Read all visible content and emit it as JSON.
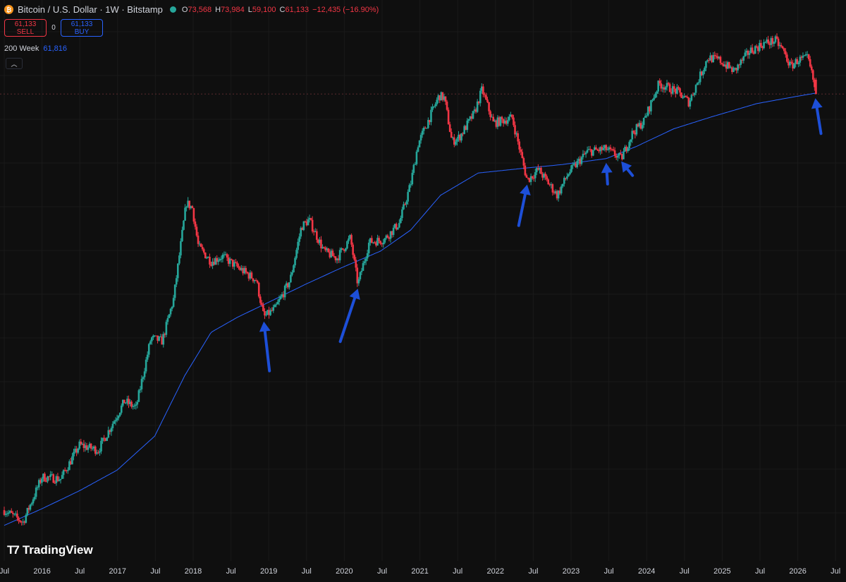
{
  "header": {
    "title": "Bitcoin / U.S. Dollar · 1W · Bitstamp",
    "icon": "bitcoin-icon",
    "ohlc": [
      {
        "key": "O",
        "value": "73,568"
      },
      {
        "key": "H",
        "value": "73,984"
      },
      {
        "key": "L",
        "value": "59,100"
      },
      {
        "key": "C",
        "value": "61,133"
      }
    ],
    "change": "−12,435 (−16.90%)"
  },
  "trade": {
    "sell_price": "61,133",
    "sell_label": "SELL",
    "spread": "0",
    "buy_price": "61,133",
    "buy_label": "BUY"
  },
  "indicator": {
    "name": "200 Week",
    "value": "61,816"
  },
  "collapse_icon": "chevron-up-icon",
  "logo_text": "TradingView",
  "colors": {
    "background": "#0f0f0f",
    "up": "#26a69a",
    "down": "#f23645",
    "ma": "#2962ff",
    "arrow": "#1d4fd8",
    "text": "#d1d4dc"
  },
  "chart_data": {
    "type": "candlestick",
    "scale": "log",
    "x_tick_labels": [
      "Jul",
      "2016",
      "Jul",
      "2017",
      "Jul",
      "2018",
      "Jul",
      "2019",
      "Jul",
      "2020",
      "Jul",
      "2021",
      "Jul",
      "2022",
      "Jul",
      "2023",
      "Jul",
      "2024",
      "Jul",
      "2025",
      "Jul",
      "2026",
      "Jul"
    ],
    "x_range": [
      2015.5,
      2026.5
    ],
    "y_range": [
      200,
      150000
    ],
    "last_close": 61133,
    "price_path": [
      [
        2015.5,
        280
      ],
      [
        2015.75,
        240
      ],
      [
        2016.0,
        430
      ],
      [
        2016.25,
        420
      ],
      [
        2016.5,
        650
      ],
      [
        2016.75,
        610
      ],
      [
        2017.0,
        960
      ],
      [
        2017.1,
        1150
      ],
      [
        2017.25,
        1050
      ],
      [
        2017.45,
        2600
      ],
      [
        2017.6,
        2500
      ],
      [
        2017.75,
        4300
      ],
      [
        2017.92,
        15000
      ],
      [
        2018.0,
        14000
      ],
      [
        2018.08,
        8500
      ],
      [
        2018.25,
        7000
      ],
      [
        2018.4,
        7500
      ],
      [
        2018.6,
        6500
      ],
      [
        2018.85,
        5500
      ],
      [
        2018.95,
        3400
      ],
      [
        2019.1,
        3800
      ],
      [
        2019.3,
        5500
      ],
      [
        2019.45,
        11000
      ],
      [
        2019.55,
        12000
      ],
      [
        2019.75,
        8000
      ],
      [
        2019.92,
        7300
      ],
      [
        2020.1,
        9500
      ],
      [
        2020.2,
        5200
      ],
      [
        2020.35,
        9000
      ],
      [
        2020.55,
        9300
      ],
      [
        2020.75,
        11500
      ],
      [
        2020.9,
        19000
      ],
      [
        2021.0,
        32000
      ],
      [
        2021.28,
        60000
      ],
      [
        2021.35,
        58000
      ],
      [
        2021.45,
        33000
      ],
      [
        2021.55,
        35000
      ],
      [
        2021.75,
        48000
      ],
      [
        2021.85,
        65000
      ],
      [
        2022.0,
        42000
      ],
      [
        2022.25,
        45000
      ],
      [
        2022.45,
        20000
      ],
      [
        2022.6,
        23000
      ],
      [
        2022.85,
        16500
      ],
      [
        2023.0,
        22000
      ],
      [
        2023.25,
        29000
      ],
      [
        2023.5,
        30000
      ],
      [
        2023.7,
        26500
      ],
      [
        2023.85,
        37000
      ],
      [
        2024.0,
        43000
      ],
      [
        2024.2,
        70000
      ],
      [
        2024.45,
        63000
      ],
      [
        2024.6,
        55000
      ],
      [
        2024.85,
        98000
      ],
      [
        2025.0,
        95000
      ],
      [
        2025.2,
        82000
      ],
      [
        2025.4,
        106000
      ],
      [
        2025.6,
        118000
      ],
      [
        2025.75,
        122000
      ],
      [
        2025.85,
        108000
      ],
      [
        2025.95,
        87000
      ],
      [
        2026.05,
        95000
      ],
      [
        2026.18,
        97000
      ],
      [
        2026.25,
        73568
      ],
      [
        2026.28,
        61133
      ]
    ],
    "ma_200w": {
      "name": "200 Week",
      "points": [
        [
          2015.5,
          230
        ],
        [
          2016.0,
          285
        ],
        [
          2016.5,
          360
        ],
        [
          2017.0,
          470
        ],
        [
          2017.5,
          730
        ],
        [
          2017.9,
          1600
        ],
        [
          2018.25,
          2800
        ],
        [
          2018.6,
          3400
        ],
        [
          2019.0,
          4100
        ],
        [
          2019.5,
          5200
        ],
        [
          2020.0,
          6500
        ],
        [
          2020.5,
          8000
        ],
        [
          2020.9,
          10500
        ],
        [
          2021.3,
          16500
        ],
        [
          2021.8,
          22000
        ],
        [
          2022.45,
          23500
        ],
        [
          2022.9,
          24500
        ],
        [
          2023.5,
          26500
        ],
        [
          2023.9,
          31000
        ],
        [
          2024.4,
          39000
        ],
        [
          2024.9,
          45500
        ],
        [
          2025.5,
          54000
        ],
        [
          2026.0,
          59000
        ],
        [
          2026.28,
          61816
        ]
      ]
    },
    "annotations": [
      {
        "type": "arrow",
        "target_date": 2018.95,
        "target_price": 3400
      },
      {
        "type": "arrow",
        "target_date": 2020.2,
        "target_price": 5200
      },
      {
        "type": "arrow",
        "target_date": 2022.45,
        "target_price": 20000
      },
      {
        "type": "arrow",
        "target_date": 2023.5,
        "target_price": 26500
      },
      {
        "type": "arrow",
        "target_date": 2023.7,
        "target_price": 27000
      },
      {
        "type": "arrow",
        "target_date": 2026.28,
        "target_price": 61133
      }
    ]
  }
}
